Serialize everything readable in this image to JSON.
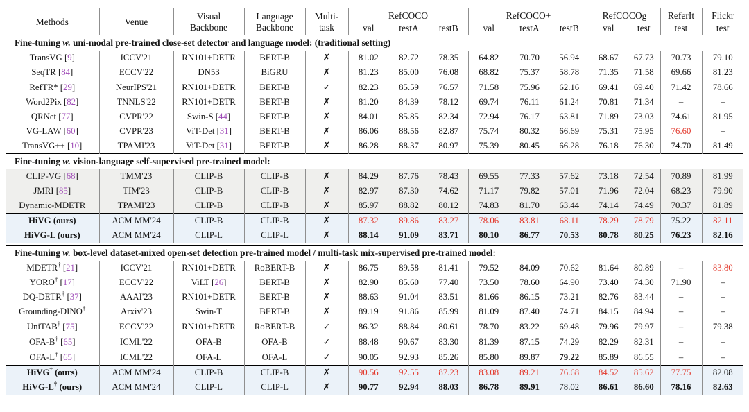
{
  "colors": {
    "red": "#e2372b",
    "cite": "#a04db8",
    "row-gray": "#efefed",
    "row-blue": "#ebf2f9"
  },
  "icons": {
    "cross": "✗",
    "check": "✓"
  },
  "header": {
    "methods": "Methods",
    "venue": "Venue",
    "visual_backbone": "Visual\nBackbone",
    "language_backbone": "Language\nBackbone",
    "multi_task": "Multi-\ntask",
    "groups": [
      {
        "label": "RefCOCO",
        "subs": [
          "val",
          "testA",
          "testB"
        ]
      },
      {
        "label": "RefCOCO+",
        "subs": [
          "val",
          "testA",
          "testB"
        ]
      },
      {
        "label": "RefCOCOg",
        "subs": [
          "val",
          "test"
        ]
      },
      {
        "label": "ReferIt",
        "subs": [
          "test"
        ]
      },
      {
        "label": "Flickr",
        "subs": [
          "test"
        ]
      }
    ]
  },
  "sections": [
    {
      "title": {
        "pre": "Fine-tuning",
        "it": "w.",
        "rest": "uni-modal pre-trained close-set detector and language model: (traditional setting)"
      },
      "groups": [
        {
          "style": "plain",
          "rows": [
            {
              "method": "TransVG",
              "cite": "[9]",
              "venue": "ICCV'21",
              "visual": "RN101+DETR",
              "lang": "BERT-B",
              "mt": "cross",
              "vals": [
                "81.02",
                "82.72",
                "78.35",
                "64.82",
                "70.70",
                "56.94",
                "68.67",
                "67.73",
                "70.73",
                "79.10"
              ]
            },
            {
              "method": "SeqTR",
              "cite": "[84]",
              "venue": "ECCV'22",
              "visual": "DN53",
              "lang": "BiGRU",
              "mt": "cross",
              "vals": [
                "81.23",
                "85.00",
                "76.08",
                "68.82",
                "75.37",
                "58.78",
                "71.35",
                "71.58",
                "69.66",
                "81.23"
              ]
            },
            {
              "method": "RefTR*",
              "cite": "[29]",
              "venue": "NeurIPS'21",
              "visual": "RN101+DETR",
              "lang": "BERT-B",
              "mt": "check",
              "vals": [
                "82.23",
                "85.59",
                "76.57",
                "71.58",
                "75.96",
                "62.16",
                "69.41",
                "69.40",
                "71.42",
                "78.66"
              ]
            },
            {
              "method": "Word2Pix",
              "cite": "[82]",
              "venue": "TNNLS'22",
              "visual": "RN101+DETR",
              "lang": "BERT-B",
              "mt": "cross",
              "vals": [
                "81.20",
                "84.39",
                "78.12",
                "69.74",
                "76.11",
                "61.24",
                "70.81",
                "71.34",
                "–",
                "–"
              ]
            },
            {
              "method": "QRNet",
              "cite": "[77]",
              "venue": "CVPR'22",
              "visual": "Swin-S",
              "vcite": "[44]",
              "lang": "BERT-B",
              "mt": "cross",
              "vals": [
                "84.01",
                "85.85",
                "82.34",
                "72.94",
                "76.17",
                "63.81",
                "71.89",
                "73.03",
                "74.61",
                "81.95"
              ]
            },
            {
              "method": "VG-LAW",
              "cite": "[60]",
              "venue": "CVPR'23",
              "visual": "ViT-Det",
              "vcite": "[31]",
              "lang": "BERT-B",
              "mt": "cross",
              "vals": [
                "86.06",
                "88.56",
                "82.87",
                "75.74",
                "80.32",
                "66.69",
                "75.31",
                "75.95",
                "76.60",
                "–"
              ],
              "red": [
                8
              ]
            },
            {
              "method": "TransVG++",
              "cite": "[10]",
              "venue": "TPAMI'23",
              "visual": "ViT-Det",
              "vcite": "[31]",
              "lang": "BERT-B",
              "mt": "cross",
              "vals": [
                "86.28",
                "88.37",
                "80.97",
                "75.39",
                "80.45",
                "66.28",
                "76.18",
                "76.30",
                "74.70",
                "81.49"
              ]
            }
          ]
        }
      ]
    },
    {
      "title": {
        "pre": "Fine-tuning",
        "it": "w.",
        "rest": "vision-language self-supervised pre-trained model:"
      },
      "groups": [
        {
          "style": "gray",
          "rows": [
            {
              "method": "CLIP-VG",
              "cite": "[68]",
              "venue": "TMM'23",
              "visual": "CLIP-B",
              "lang": "CLIP-B",
              "mt": "cross",
              "vals": [
                "84.29",
                "87.76",
                "78.43",
                "69.55",
                "77.33",
                "57.62",
                "73.18",
                "72.54",
                "70.89",
                "81.99"
              ]
            },
            {
              "method": "JMRI",
              "cite": "[85]",
              "venue": "TIM'23",
              "visual": "CLIP-B",
              "lang": "CLIP-B",
              "mt": "cross",
              "vals": [
                "82.97",
                "87.30",
                "74.62",
                "71.17",
                "79.82",
                "57.01",
                "71.96",
                "72.04",
                "68.23",
                "79.90"
              ]
            },
            {
              "method": "Dynamic-MDETR",
              "venue": "TPAMI'23",
              "visual": "CLIP-B",
              "lang": "CLIP-B",
              "mt": "cross",
              "vals": [
                "85.97",
                "88.82",
                "80.12",
                "74.83",
                "81.70",
                "63.44",
                "74.14",
                "74.49",
                "70.37",
                "81.89"
              ]
            }
          ]
        },
        {
          "style": "ours",
          "rows": [
            {
              "method": "HiVG",
              "after": "(ours)",
              "venue": "ACM MM'24",
              "visual": "CLIP-B",
              "lang": "CLIP-B",
              "mt": "cross",
              "vals": [
                "87.32",
                "89.86",
                "83.27",
                "78.06",
                "83.81",
                "68.11",
                "78.29",
                "78.79",
                "75.22",
                "82.11"
              ],
              "red": [
                0,
                1,
                2,
                3,
                4,
                5,
                6,
                7,
                9
              ]
            },
            {
              "method": "HiVG-L",
              "after": "(ours)",
              "venue": "ACM MM'24",
              "visual": "CLIP-L",
              "lang": "CLIP-L",
              "mt": "cross",
              "vals": [
                "88.14",
                "91.09",
                "83.71",
                "80.10",
                "86.77",
                "70.53",
                "80.78",
                "80.25",
                "76.23",
                "82.16"
              ],
              "bold": [
                0,
                1,
                2,
                3,
                4,
                5,
                6,
                7,
                8,
                9
              ]
            }
          ]
        }
      ]
    },
    {
      "title": {
        "pre": "Fine-tuning",
        "it": "w.",
        "rest": "box-level dataset-mixed open-set detection pre-trained model / multi-task mix-supervised pre-trained model:"
      },
      "groups": [
        {
          "style": "plain",
          "rows": [
            {
              "method": "MDETR",
              "sup": "†",
              "cite": "[21]",
              "venue": "ICCV'21",
              "visual": "RN101+DETR",
              "lang": "RoBERT-B",
              "mt": "cross",
              "vals": [
                "86.75",
                "89.58",
                "81.41",
                "79.52",
                "84.09",
                "70.62",
                "81.64",
                "80.89",
                "–",
                "83.80"
              ],
              "red": [
                9
              ]
            },
            {
              "method": "YORO",
              "sup": "†",
              "cite": "[17]",
              "venue": "ECCV'22",
              "visual": "ViLT",
              "vcite": "[26]",
              "lang": "BERT-B",
              "mt": "cross",
              "vals": [
                "82.90",
                "85.60",
                "77.40",
                "73.50",
                "78.60",
                "64.90",
                "73.40",
                "74.30",
                "71.90",
                "–"
              ]
            },
            {
              "method": "DQ-DETR",
              "sup": "†",
              "cite": "[37]",
              "venue": "AAAI'23",
              "visual": "RN101+DETR",
              "lang": "BERT-B",
              "mt": "cross",
              "vals": [
                "88.63",
                "91.04",
                "83.51",
                "81.66",
                "86.15",
                "73.21",
                "82.76",
                "83.44",
                "–",
                "–"
              ]
            },
            {
              "method": "Grounding-DINO",
              "sup": "†",
              "venue": "Arxiv'23",
              "visual": "Swin-T",
              "lang": "BERT-B",
              "mt": "cross",
              "vals": [
                "89.19",
                "91.86",
                "85.99",
                "81.09",
                "87.40",
                "74.71",
                "84.15",
                "84.94",
                "–",
                "–"
              ]
            },
            {
              "method": "UniTAB",
              "sup": "†",
              "cite": "[75]",
              "venue": "ECCV'22",
              "visual": "RN101+DETR",
              "lang": "RoBERT-B",
              "mt": "check",
              "vals": [
                "86.32",
                "88.84",
                "80.61",
                "78.70",
                "83.22",
                "69.48",
                "79.96",
                "79.97",
                "–",
                "79.38"
              ]
            },
            {
              "method": "OFA-B",
              "sup": "†",
              "cite": "[65]",
              "venue": "ICML'22",
              "visual": "OFA-B",
              "lang": "OFA-B",
              "mt": "check",
              "vals": [
                "88.48",
                "90.67",
                "83.30",
                "81.39",
                "87.15",
                "74.29",
                "82.29",
                "82.31",
                "–",
                "–"
              ]
            },
            {
              "method": "OFA-L",
              "sup": "†",
              "cite": "[65]",
              "venue": "ICML'22",
              "visual": "OFA-L",
              "lang": "OFA-L",
              "mt": "check",
              "vals": [
                "90.05",
                "92.93",
                "85.26",
                "85.80",
                "89.87",
                "79.22",
                "85.89",
                "86.55",
                "–",
                "–"
              ],
              "bold": [
                5
              ]
            }
          ]
        },
        {
          "style": "ours",
          "rows": [
            {
              "method": "HiVG",
              "sup": "†",
              "after": "(ours)",
              "venue": "ACM MM'24",
              "visual": "CLIP-B",
              "lang": "CLIP-B",
              "mt": "cross",
              "vals": [
                "90.56",
                "92.55",
                "87.23",
                "83.08",
                "89.21",
                "76.68",
                "84.52",
                "85.62",
                "77.75",
                "82.08"
              ],
              "red": [
                0,
                1,
                2,
                3,
                4,
                5,
                6,
                7,
                8
              ]
            },
            {
              "method": "HiVG-L",
              "sup": "†",
              "after": "(ours)",
              "venue": "ACM MM'24",
              "visual": "CLIP-L",
              "lang": "CLIP-L",
              "mt": "cross",
              "vals": [
                "90.77",
                "92.94",
                "88.03",
                "86.78",
                "89.91",
                "78.02",
                "86.61",
                "86.60",
                "78.16",
                "82.63"
              ],
              "bold": [
                0,
                1,
                2,
                3,
                4,
                6,
                7,
                8,
                9
              ]
            }
          ]
        }
      ]
    }
  ]
}
